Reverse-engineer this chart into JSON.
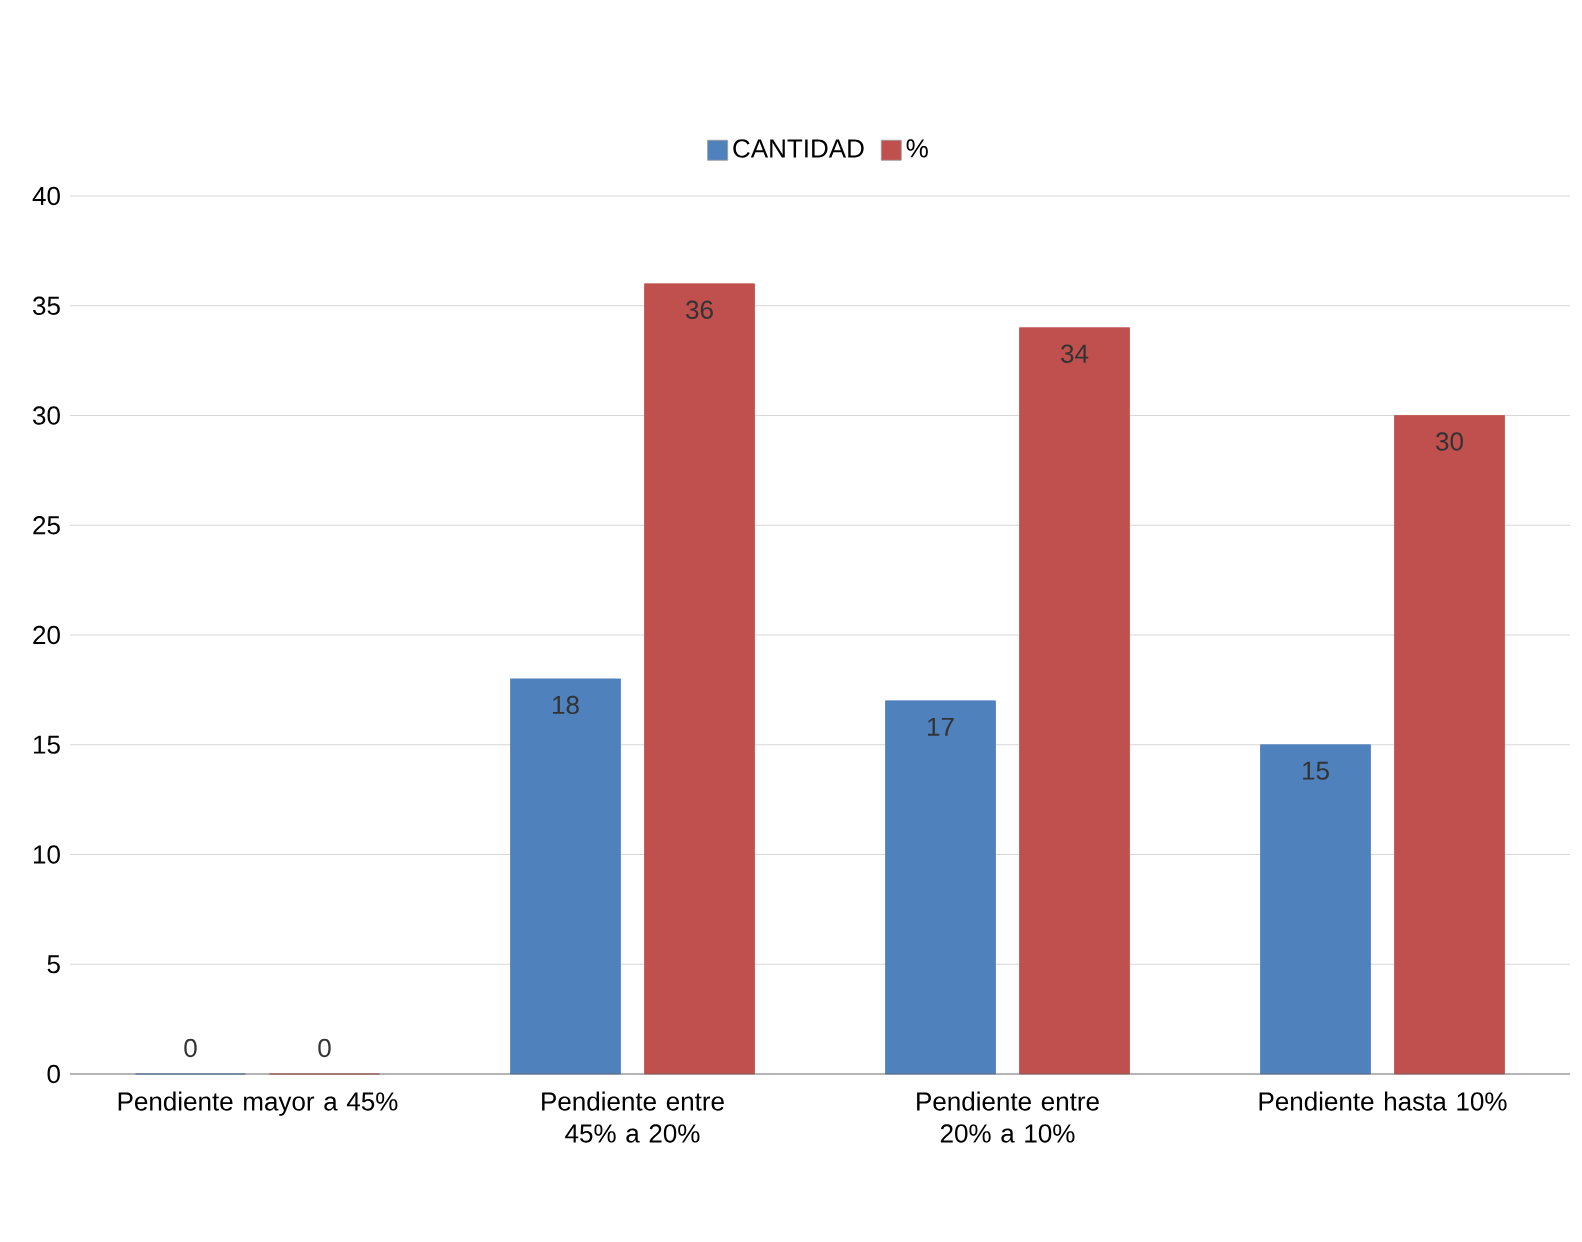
{
  "chart_data": {
    "type": "bar",
    "categories": [
      "Pendiente mayor a 45%",
      "Pendiente entre 45% a 20%",
      "Pendiente entre 20% a 10%",
      "Pendiente hasta 10%"
    ],
    "series": [
      {
        "name": "CANTIDAD",
        "color": "#4f81bd",
        "values": [
          0,
          18,
          17,
          15
        ]
      },
      {
        "name": "%",
        "color": "#c0504d",
        "values": [
          0,
          36,
          34,
          30
        ]
      }
    ],
    "ylim": [
      0,
      40
    ],
    "yticks": [
      0,
      5,
      10,
      15,
      20,
      25,
      30,
      35,
      40
    ],
    "grid": "y",
    "legend": "top",
    "data_labels": true
  }
}
